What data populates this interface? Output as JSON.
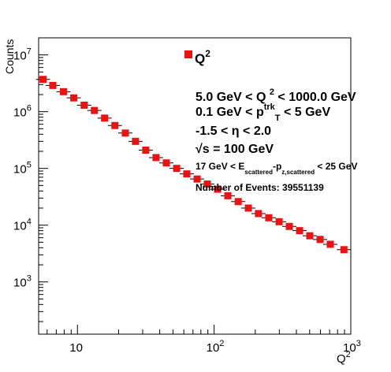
{
  "chart_data": {
    "type": "scatter",
    "xlabel": "Q",
    "xlabel_sup": "2",
    "ylabel": "Counts",
    "xlim": [
      5.2,
      1000
    ],
    "ylim": [
      120,
      20000000
    ],
    "x_scale": "log",
    "y_scale": "log",
    "grid": false,
    "legend": {
      "placement": "top-center",
      "label": "Q",
      "label_sup": "2"
    },
    "marker_color": "#ee1111",
    "x_tick_labels": [
      {
        "value": 10,
        "base": "10",
        "exp": ""
      },
      {
        "value": 100,
        "base": "10",
        "exp": "2"
      },
      {
        "value": 1000,
        "base": "10",
        "exp": "3"
      }
    ],
    "y_tick_labels": [
      {
        "value": 1000,
        "base": "10",
        "exp": "3"
      },
      {
        "value": 10000,
        "base": "10",
        "exp": "4"
      },
      {
        "value": 100000,
        "base": "10",
        "exp": "5"
      },
      {
        "value": 1000000,
        "base": "10",
        "exp": "6"
      },
      {
        "value": 10000000,
        "base": "10",
        "exp": "7"
      }
    ],
    "series": [
      {
        "x": [
          5.6,
          6.6,
          7.9,
          9.4,
          11.2,
          13.3,
          15.8,
          18.8,
          22.4,
          26.6,
          31.6,
          37.6,
          44.7,
          53.2,
          63.1,
          75.1,
          89.1,
          106,
          126,
          150,
          178,
          211,
          251,
          299,
          355,
          422,
          501,
          596,
          708,
          891
        ],
        "y": [
          3700000,
          2900000,
          2250000,
          1750000,
          1300000,
          1050000,
          770000,
          570000,
          420000,
          300000,
          210000,
          155000,
          125000,
          100000,
          80000,
          65000,
          53000,
          43000,
          33000,
          26000,
          20000,
          16000,
          13500,
          11500,
          9500,
          8000,
          6500,
          5600,
          4600,
          3700
        ]
      }
    ],
    "annotations": [
      {
        "id": "q2",
        "parts": [
          [
            "5.0 GeV < Q ",
            ""
          ],
          [
            "2",
            "sup"
          ],
          [
            " < 1000.0 GeV",
            ""
          ]
        ]
      },
      {
        "id": "pt",
        "parts": [
          [
            "0.1 GeV < p",
            ""
          ],
          [
            "trk",
            "sup"
          ],
          [
            "T",
            "sub"
          ],
          [
            " < 5 GeV",
            ""
          ]
        ]
      },
      {
        "id": "eta",
        "parts": [
          [
            "-1.5 <  η < 2.0",
            ""
          ]
        ]
      },
      {
        "id": "sqrts",
        "parts": [
          [
            "√s = 100 GeV",
            ""
          ]
        ]
      },
      {
        "id": "epz",
        "parts": [
          [
            "17 GeV < E",
            ""
          ],
          [
            "scattered",
            "sub"
          ],
          [
            "-p",
            ""
          ],
          [
            "z,scattered",
            "sub"
          ],
          [
            " < 25 GeV",
            ""
          ]
        ]
      },
      {
        "id": "nev",
        "parts": [
          [
            "Number of Events: 39551139",
            ""
          ]
        ]
      }
    ]
  }
}
